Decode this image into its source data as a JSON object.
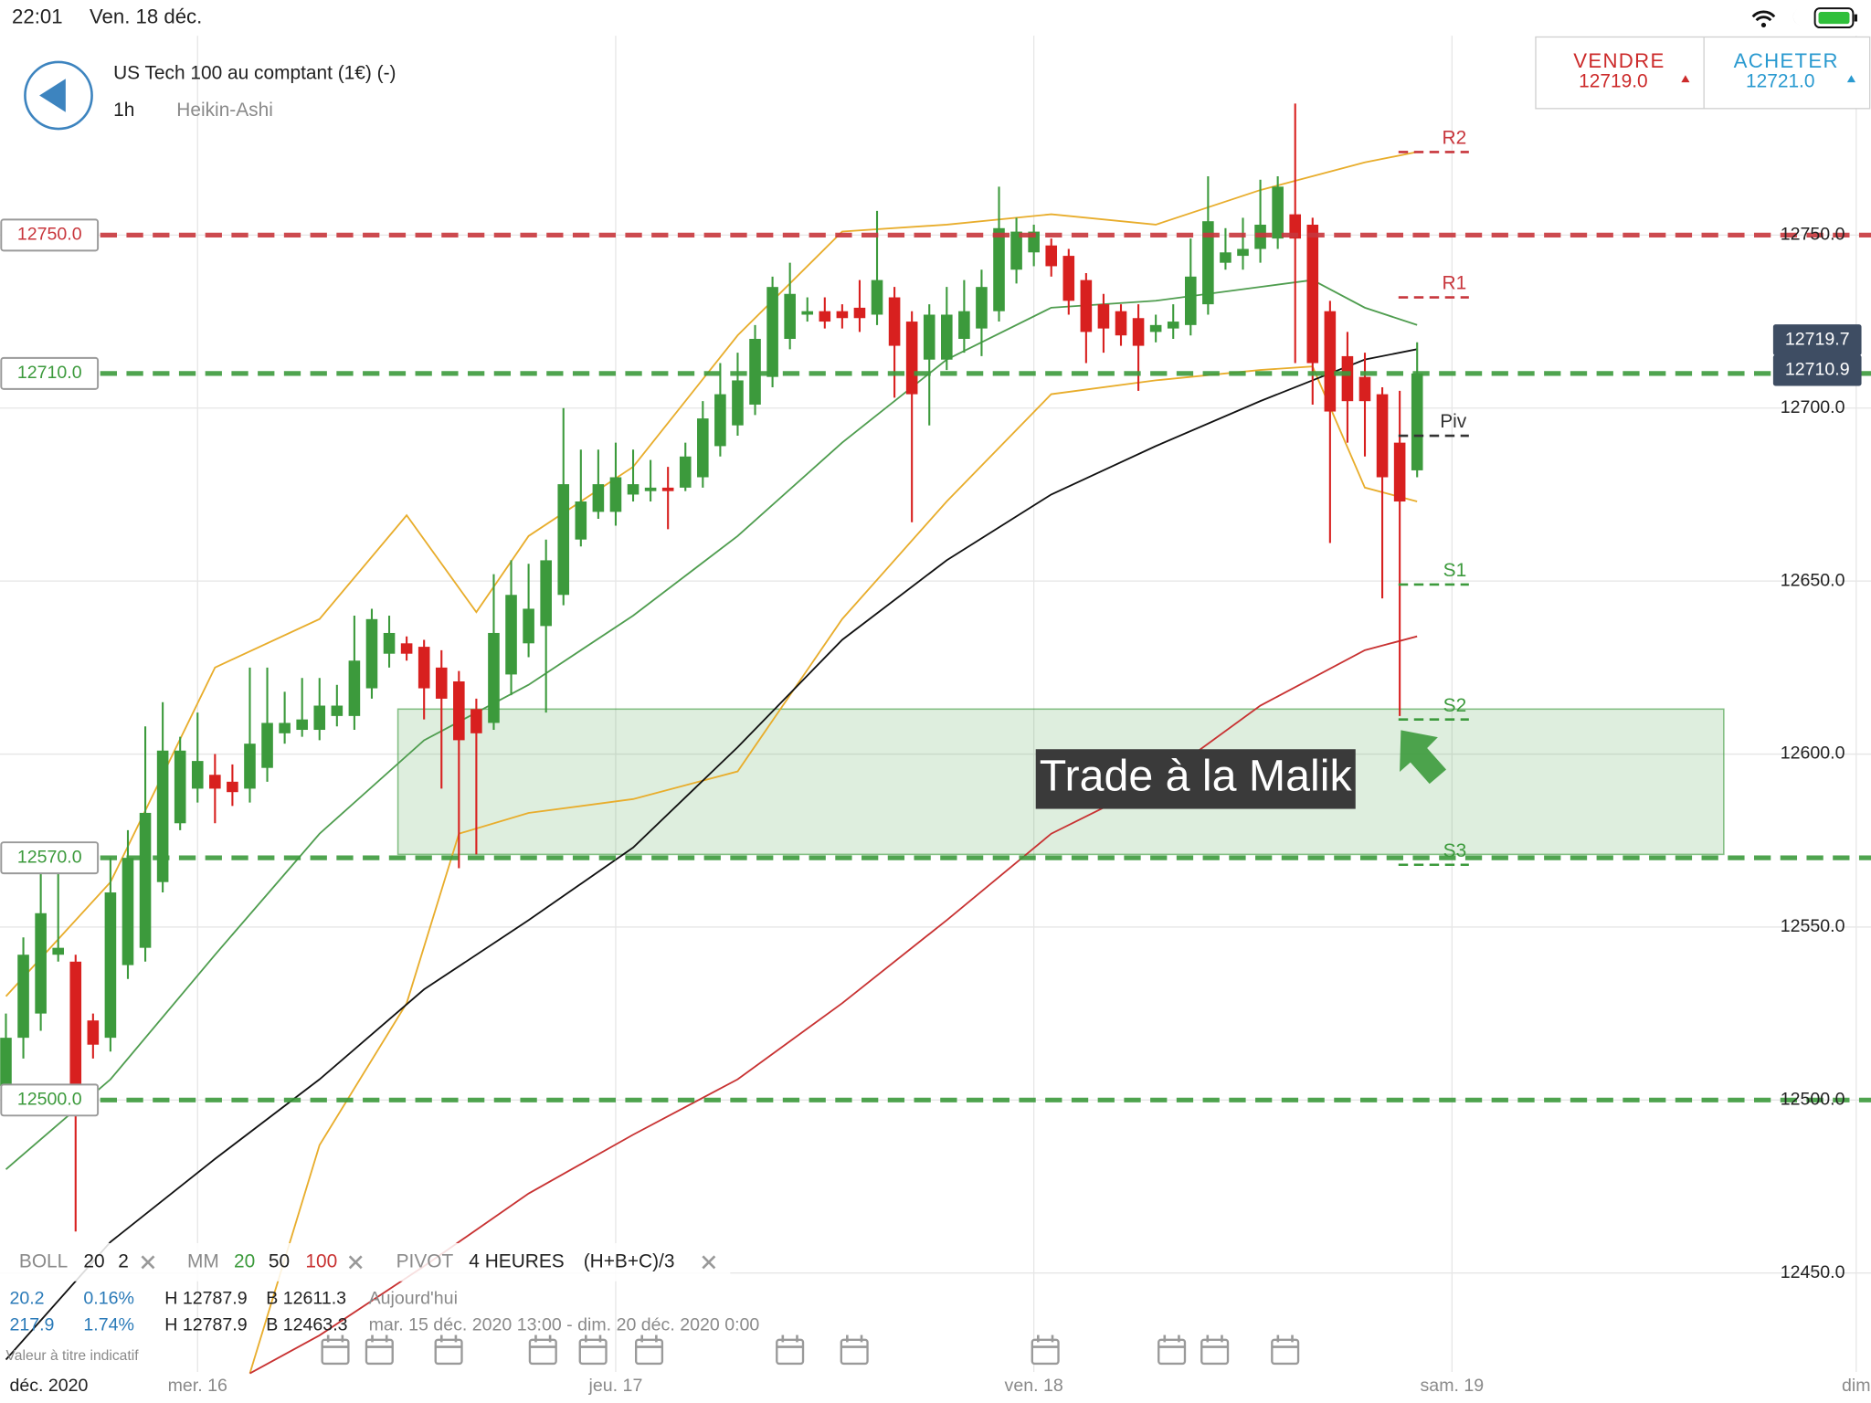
{
  "status_bar": {
    "time": "22:01",
    "date": "Ven. 18 déc."
  },
  "header": {
    "title": "US Tech 100 au comptant (1€) (-)",
    "interval": "1h",
    "chart_style": "Heikin-Ashi"
  },
  "quotes": {
    "sell": {
      "label": "VENDRE",
      "price": "12719.0"
    },
    "buy": {
      "label": "ACHETER",
      "price": "12721.0"
    }
  },
  "indicators": {
    "boll": {
      "name": "BOLL",
      "params": [
        "20",
        "2"
      ]
    },
    "mm": {
      "name": "MM",
      "params": [
        "20",
        "50",
        "100"
      ]
    },
    "pivot": {
      "name": "PIVOT",
      "params": [
        "4 HEURES",
        "(H+B+C)/3"
      ]
    },
    "rows": [
      [
        "20.2",
        "0.16%",
        "H 12787.9",
        "B 12611.3",
        "Aujourd'hui"
      ],
      [
        "217.9",
        "1.74%",
        "H 12787.9",
        "B 12463.3",
        "mar. 15 déc. 2020 13:00 - dim. 20 déc. 2020 0:00"
      ]
    ],
    "note": "Valeur à titre indicatif"
  },
  "chart_data": {
    "type": "candlestick",
    "up_color": "#3c9a3c",
    "down_color": "#d8201f",
    "xlim": [
      -0.34,
      107.05
    ],
    "ylim": [
      12421.4,
      12807.6
    ],
    "x_period_label": "déc. 2020",
    "xticks": [
      {
        "value": 11,
        "label": "mer. 16"
      },
      {
        "value": 35,
        "label": "jeu. 17"
      },
      {
        "value": 59,
        "label": "ven. 18"
      },
      {
        "value": 83,
        "label": "sam. 19"
      },
      {
        "value": 106.2,
        "label": "dim"
      }
    ],
    "yticks": [
      {
        "value": 12450,
        "label": "12450.0"
      },
      {
        "value": 12500,
        "label": "12500.0"
      },
      {
        "value": 12550,
        "label": "12550.0"
      },
      {
        "value": 12600,
        "label": "12600.0"
      },
      {
        "value": 12650,
        "label": "12650.0"
      },
      {
        "value": 12700,
        "label": "12700.0"
      },
      {
        "value": 12750,
        "label": "12750.0"
      }
    ],
    "grid": true,
    "x": [
      0,
      1,
      2,
      3,
      4,
      5,
      6,
      7,
      8,
      9,
      10,
      11,
      12,
      13,
      14,
      15,
      16,
      17,
      18,
      19,
      20,
      21,
      22,
      23,
      24,
      25,
      26,
      27,
      28,
      29,
      30,
      31,
      32,
      33,
      34,
      35,
      36,
      37,
      38,
      39,
      40,
      41,
      42,
      43,
      44,
      45,
      46,
      47,
      48,
      49,
      50,
      51,
      52,
      53,
      54,
      55,
      56,
      57,
      58,
      59,
      60,
      61,
      62,
      63,
      64,
      65,
      66,
      67,
      68,
      69,
      70,
      71,
      72,
      73,
      74,
      75,
      76,
      77,
      78,
      79,
      80,
      81
    ],
    "open": [
      12504,
      12518,
      12525,
      12542,
      12540,
      12523,
      12518,
      12539,
      12544,
      12563,
      12580,
      12590,
      12594,
      12592,
      12590,
      12596,
      12606,
      12607,
      12607,
      12611,
      12611,
      12619,
      12629,
      12632,
      12631,
      12625,
      12621,
      12613,
      12609,
      12623,
      12632,
      12637,
      12646,
      12662,
      12670,
      12670,
      12675,
      12676,
      12677,
      12677,
      12680,
      12689,
      12695,
      12701,
      12709,
      12720,
      12727,
      12728,
      12728,
      12729,
      12727,
      12732,
      12725,
      12714,
      12714,
      12720,
      12723,
      12728,
      12740,
      12745,
      12747,
      12744,
      12737,
      12730,
      12728,
      12726,
      12722,
      12723,
      12724,
      12730,
      12742,
      12744,
      12746,
      12749,
      12756,
      12753,
      12728,
      12715,
      12709,
      12704,
      12690,
      12682
    ],
    "high": [
      12525,
      12547,
      12570,
      12568,
      12542,
      12525,
      12570,
      12578,
      12608,
      12615,
      12605,
      12612,
      12600,
      12597,
      12625,
      12625,
      12618,
      12622,
      12622,
      12620,
      12640,
      12642,
      12640,
      12634,
      12633,
      12630,
      12624,
      12616,
      12652,
      12656,
      12655,
      12662,
      12700,
      12688,
      12688,
      12690,
      12688,
      12685,
      12683,
      12690,
      12702,
      12713,
      12716,
      12724,
      12738,
      12742,
      12732,
      12732,
      12730,
      12737,
      12757,
      12735,
      12728,
      12730,
      12735,
      12737,
      12740,
      12764,
      12755,
      12753,
      12749,
      12746,
      12739,
      12733,
      12730,
      12730,
      12727,
      12730,
      12749,
      12767,
      12752,
      12755,
      12766,
      12767,
      12788,
      12755,
      12731,
      12722,
      12716,
      12706,
      12705,
      12719
    ],
    "low": [
      12500,
      12512,
      12520,
      12540,
      12462,
      12512,
      12514,
      12535,
      12540,
      12560,
      12578,
      12586,
      12580,
      12585,
      12586,
      12592,
      12603,
      12605,
      12604,
      12608,
      12607,
      12616,
      12625,
      12627,
      12610,
      12590,
      12567,
      12571,
      12607,
      12617,
      12628,
      12612,
      12643,
      12660,
      12668,
      12666,
      12673,
      12673,
      12665,
      12676,
      12677,
      12686,
      12692,
      12698,
      12706,
      12717,
      12725,
      12723,
      12723,
      12722,
      12724,
      12703,
      12667,
      12695,
      12711,
      12716,
      12715,
      12725,
      12736,
      12741,
      12738,
      12727,
      12713,
      12716,
      12718,
      12705,
      12719,
      12720,
      12721,
      12727,
      12740,
      12740,
      12742,
      12746,
      12713,
      12701,
      12661,
      12690,
      12686,
      12645,
      12611,
      12680
    ],
    "close": [
      12518,
      12542,
      12554,
      12544,
      12504,
      12516,
      12560,
      12570,
      12583,
      12601,
      12601,
      12598,
      12590,
      12589,
      12603,
      12609,
      12609,
      12610,
      12614,
      12614,
      12627,
      12639,
      12635,
      12629,
      12619,
      12616,
      12604,
      12606,
      12635,
      12646,
      12642,
      12656,
      12678,
      12673,
      12678,
      12680,
      12678,
      12677,
      12676,
      12686,
      12697,
      12704,
      12708,
      12720,
      12735,
      12733,
      12728,
      12725,
      12726,
      12726,
      12737,
      12718,
      12704,
      12727,
      12727,
      12728,
      12735,
      12752,
      12751,
      12751,
      12741,
      12731,
      12722,
      12723,
      12721,
      12718,
      12724,
      12725,
      12738,
      12754,
      12745,
      12746,
      12753,
      12764,
      12749,
      12713,
      12699,
      12702,
      12702,
      12680,
      12673,
      12710
    ],
    "lines": [
      {
        "color": "#e8ad2c",
        "x": [
          0,
          6,
          12,
          18,
          23,
          27,
          30,
          36,
          42,
          48,
          54,
          60,
          66,
          72,
          78,
          81
        ],
        "values": [
          12530,
          12563,
          12625,
          12639,
          12669,
          12641,
          12663,
          12683,
          12721,
          12751,
          12753,
          12756,
          12753,
          12763,
          12771,
          12774
        ]
      },
      {
        "color": "#e8ad2c",
        "x": [
          14,
          18,
          23,
          26,
          30,
          36,
          42,
          48,
          54,
          60,
          66,
          72,
          75,
          78,
          81
        ],
        "values": [
          12421,
          12487,
          12528,
          12577,
          12583,
          12587,
          12595,
          12639,
          12673,
          12704,
          12708,
          12711,
          12712,
          12677,
          12673
        ]
      },
      {
        "color": "#4f9d4f",
        "x": [
          0,
          6,
          12,
          18,
          24,
          30,
          36,
          42,
          48,
          54,
          60,
          66,
          72,
          75,
          78,
          81
        ],
        "values": [
          12480,
          12506,
          12542,
          12577,
          12604,
          12620,
          12640,
          12663,
          12690,
          12714,
          12729,
          12731,
          12735,
          12737,
          12729,
          12724
        ]
      },
      {
        "color": "#111111",
        "x": [
          0,
          6,
          12,
          18,
          24,
          30,
          36,
          42,
          48,
          54,
          60,
          66,
          72,
          78,
          81
        ],
        "values": [
          12425,
          12459,
          12483,
          12506,
          12532,
          12552,
          12573,
          12602,
          12633,
          12656,
          12675,
          12689,
          12702,
          12714,
          12717
        ]
      },
      {
        "color": "#c83232",
        "x": [
          14,
          18,
          24,
          30,
          36,
          42,
          48,
          54,
          60,
          66,
          72,
          78,
          81
        ],
        "values": [
          12421,
          12432,
          12452,
          12473,
          12490,
          12506,
          12528,
          12552,
          12577,
          12592,
          12614,
          12630,
          12634
        ]
      }
    ],
    "levels": [
      {
        "value": 12750,
        "label": "12750.0",
        "color": "#c8363c"
      },
      {
        "value": 12710,
        "label": "12710.0",
        "color": "#3c9a3c"
      },
      {
        "value": 12570,
        "label": "12570.0",
        "color": "#3c9a3c"
      },
      {
        "value": 12500,
        "label": "12500.0",
        "color": "#3c9a3c"
      }
    ],
    "pivots": [
      {
        "name": "R2",
        "value": 12774,
        "color": "#c8363c"
      },
      {
        "name": "R1",
        "value": 12732,
        "color": "#c8363c"
      },
      {
        "name": "Piv",
        "value": 12692,
        "color": "#333333"
      },
      {
        "name": "S1",
        "value": 12649,
        "color": "#3c9a3c"
      },
      {
        "name": "S2",
        "value": 12610,
        "color": "#3c9a3c"
      },
      {
        "name": "S3",
        "value": 12568,
        "color": "#3c9a3c"
      }
    ],
    "zone": {
      "xlim": [
        22.5,
        98.6
      ],
      "ylim": [
        12571,
        12613
      ],
      "color": "#3c9a3c"
    },
    "annotation": "Trade à la Malik",
    "price_tags": [
      12719.7,
      12710.9
    ]
  }
}
